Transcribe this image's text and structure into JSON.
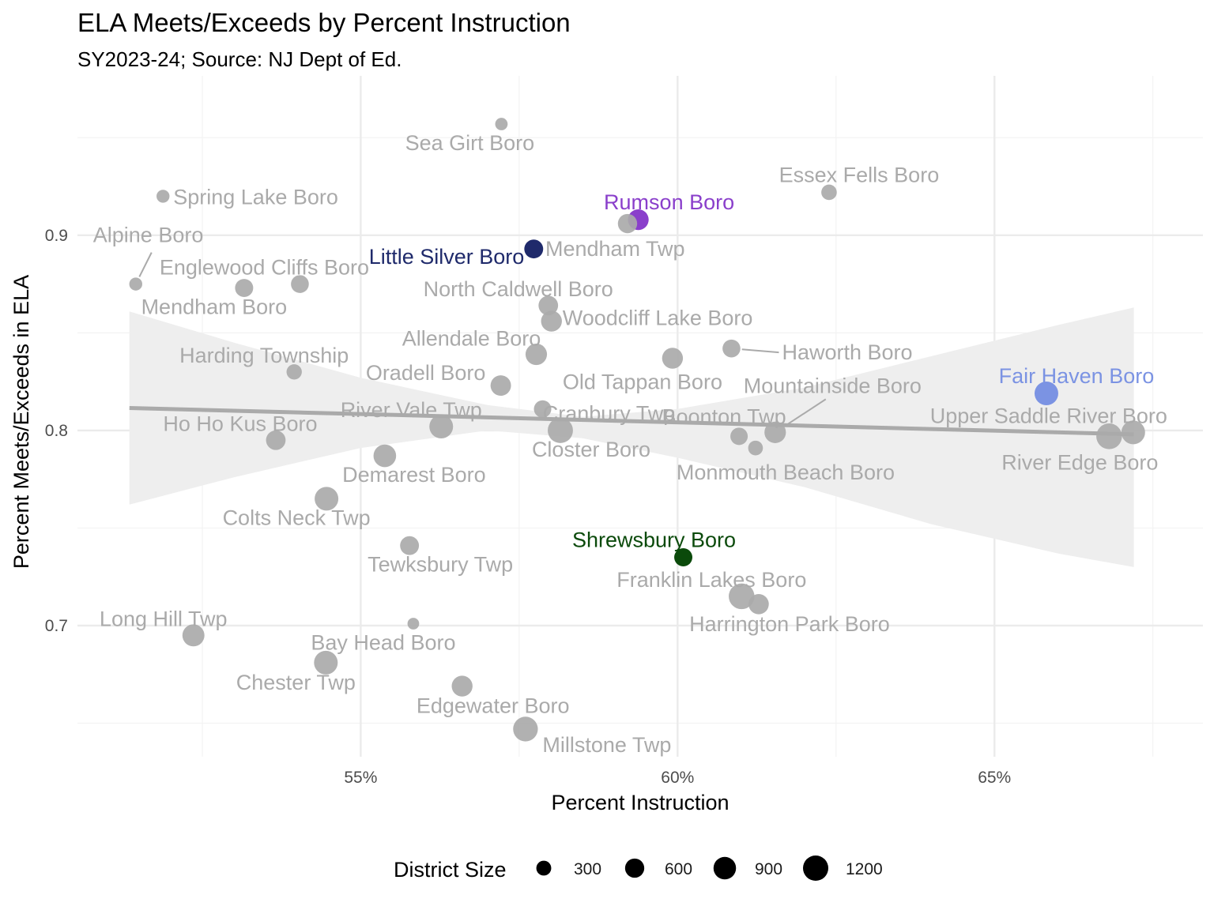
{
  "chart_data": {
    "type": "scatter",
    "title": "ELA Meets/Exceeds by Percent Instruction",
    "subtitle": "SY2023-24; Source: NJ Dept of Ed.",
    "xlabel": "Percent Instruction",
    "ylabel": "Percent Meets/Exceeds in ELA",
    "xlim": [
      0.5053,
      0.6829
    ],
    "ylim": [
      0.6328,
      0.9817
    ],
    "x_ticks": [
      {
        "value": 0.55,
        "label": "55%"
      },
      {
        "value": 0.6,
        "label": "60%"
      },
      {
        "value": 0.65,
        "label": "65%"
      }
    ],
    "y_ticks": [
      {
        "value": 0.7,
        "label": "0.7"
      },
      {
        "value": 0.8,
        "label": "0.8"
      },
      {
        "value": 0.9,
        "label": "0.9"
      }
    ],
    "x_minor_ticks": [
      0.525,
      0.575,
      0.625,
      0.675
    ],
    "y_minor_ticks": [
      0.65,
      0.75,
      0.85,
      0.95
    ],
    "trend_line": {
      "x": [
        0.5135,
        0.672
      ],
      "y": [
        0.8115,
        0.798
      ]
    },
    "confidence_band": {
      "x": [
        0.5135,
        0.53,
        0.55,
        0.57,
        0.585,
        0.6,
        0.62,
        0.64,
        0.66,
        0.672
      ],
      "upper": [
        0.861,
        0.845,
        0.827,
        0.813,
        0.807,
        0.811,
        0.822,
        0.838,
        0.854,
        0.863
      ],
      "lower": [
        0.762,
        0.776,
        0.791,
        0.8,
        0.796,
        0.786,
        0.771,
        0.752,
        0.737,
        0.73
      ]
    },
    "size_legend": {
      "title": "District Size",
      "values": [
        300,
        600,
        900,
        1200
      ],
      "labels": [
        "300",
        "600",
        "900",
        "1200"
      ]
    },
    "colors": {
      "default": "#aaaaaa",
      "trend": "#aaaaaa",
      "band": "#eeeeee",
      "Rumson Boro": "#8a3fcb",
      "Little Silver Boro": "#1f2a6b",
      "Fair Haven Boro": "#7b93e3",
      "Shrewsbury Boro": "#0b4a0b"
    },
    "points": [
      {
        "name": "Sea Girt Boro",
        "x": 0.5722,
        "y": 0.957,
        "size": 150,
        "label_anchor": "middle",
        "label_dx": -40,
        "label_dy": 33
      },
      {
        "name": "Spring Lake Boro",
        "x": 0.5188,
        "y": 0.92,
        "size": 170,
        "label_anchor": "start",
        "label_dx": 13,
        "label_dy": 10
      },
      {
        "name": "Alpine Boro",
        "x": 0.5145,
        "y": 0.875,
        "size": 170,
        "label_anchor": "start",
        "label_dx": -54,
        "label_dy": -53,
        "leader": true
      },
      {
        "name": "Essex Fells Boro",
        "x": 0.6239,
        "y": 0.922,
        "size": 290,
        "label_anchor": "middle",
        "label_dx": 38,
        "label_dy": -13
      },
      {
        "name": "Rumson Boro",
        "x": 0.5938,
        "y": 0.908,
        "size": 640,
        "label_anchor": "middle",
        "label_dx": 39,
        "label_dy": -13
      },
      {
        "name": "Mendham Twp",
        "x": 0.5921,
        "y": 0.906,
        "size": 530,
        "label_anchor": "start",
        "label_dx": -104,
        "label_dy": 41
      },
      {
        "name": "Little Silver Boro",
        "x": 0.5773,
        "y": 0.893,
        "size": 500,
        "label_anchor": "end",
        "label_dx": -12,
        "label_dy": 19
      },
      {
        "name": "Englewood Cliffs Boro",
        "x": 0.5404,
        "y": 0.875,
        "size": 430,
        "label_anchor": "middle",
        "label_dx": -45,
        "label_dy": -12
      },
      {
        "name": "Mendham Boro",
        "x": 0.5316,
        "y": 0.873,
        "size": 450,
        "label_anchor": "middle",
        "label_dx": -38,
        "label_dy": 33
      },
      {
        "name": "North Caldwell Boro",
        "x": 0.5796,
        "y": 0.864,
        "size": 550,
        "label_anchor": "middle",
        "label_dx": -38,
        "label_dy": -12
      },
      {
        "name": "Woodcliff Lake Boro",
        "x": 0.5801,
        "y": 0.856,
        "size": 650,
        "label_anchor": "start",
        "label_dx": 14,
        "label_dy": 5
      },
      {
        "name": "Allendale Boro",
        "x": 0.5777,
        "y": 0.839,
        "size": 700,
        "label_anchor": "middle",
        "label_dx": -82,
        "label_dy": -11
      },
      {
        "name": "Old Tappan Boro",
        "x": 0.5992,
        "y": 0.837,
        "size": 650,
        "label_anchor": "middle",
        "label_dx": -38,
        "label_dy": 39
      },
      {
        "name": "Haworth Boro",
        "x": 0.6085,
        "y": 0.842,
        "size": 430,
        "label_anchor": "start",
        "label_dx": 64,
        "label_dy": 14,
        "leader": true
      },
      {
        "name": "Harding Township",
        "x": 0.5395,
        "y": 0.83,
        "size": 280,
        "label_anchor": "middle",
        "label_dx": -38,
        "label_dy": -12
      },
      {
        "name": "Oradell Boro",
        "x": 0.5721,
        "y": 0.823,
        "size": 620,
        "label_anchor": "middle",
        "label_dx": -95,
        "label_dy": -7
      },
      {
        "name": "Mountainside Boro",
        "x": 0.6154,
        "y": 0.799,
        "size": 700,
        "label_anchor": "start",
        "label_dx": -40,
        "label_dy": -50,
        "leader": true
      },
      {
        "name": "Fair Haven Boro",
        "x": 0.6582,
        "y": 0.819,
        "size": 900,
        "label_anchor": "middle",
        "label_dx": 38,
        "label_dy": -13
      },
      {
        "name": "Cranbury Twp",
        "x": 0.5787,
        "y": 0.811,
        "size": 400,
        "label_anchor": "middle",
        "label_dx": 84,
        "label_dy": 15
      },
      {
        "name": "River Vale Twp",
        "x": 0.5627,
        "y": 0.802,
        "size": 900,
        "label_anchor": "middle",
        "label_dx": -38,
        "label_dy": -12
      },
      {
        "name": "Closter Boro",
        "x": 0.5815,
        "y": 0.8,
        "size": 1050,
        "label_anchor": "middle",
        "label_dx": 39,
        "label_dy": 33
      },
      {
        "name": "Boonton Twp",
        "x": 0.6097,
        "y": 0.797,
        "size": 400,
        "label_anchor": "middle",
        "label_dx": -19,
        "label_dy": -16
      },
      {
        "name": "Monmouth Beach Boro",
        "x": 0.6123,
        "y": 0.791,
        "size": 250,
        "label_anchor": "middle",
        "label_dx": 38,
        "label_dy": 40
      },
      {
        "name": "Upper Saddle River Boro",
        "x": 0.6719,
        "y": 0.799,
        "size": 900,
        "label_anchor": "middle",
        "label_dx": -107,
        "label_dy": -12
      },
      {
        "name": "River Edge Boro",
        "x": 0.6681,
        "y": 0.797,
        "size": 1100,
        "label_anchor": "middle",
        "label_dx": -37,
        "label_dy": 42
      },
      {
        "name": "Ho Ho Kus Boro",
        "x": 0.5366,
        "y": 0.795,
        "size": 550,
        "label_anchor": "middle",
        "label_dx": -45,
        "label_dy": -12
      },
      {
        "name": "Demarest Boro",
        "x": 0.5538,
        "y": 0.787,
        "size": 800,
        "label_anchor": "middle",
        "label_dx": 37,
        "label_dy": 33
      },
      {
        "name": "Colts Neck Twp",
        "x": 0.5446,
        "y": 0.765,
        "size": 900,
        "label_anchor": "middle",
        "label_dx": -38,
        "label_dy": 33
      },
      {
        "name": "Shrewsbury Boro",
        "x": 0.6009,
        "y": 0.735,
        "size": 450,
        "label_anchor": "middle",
        "label_dx": -37,
        "label_dy": -13
      },
      {
        "name": "Tewksbury Twp",
        "x": 0.5577,
        "y": 0.741,
        "size": 500,
        "label_anchor": "middle",
        "label_dx": 39,
        "label_dy": 33
      },
      {
        "name": "Franklin Lakes Boro",
        "x": 0.6101,
        "y": 0.715,
        "size": 1100,
        "label_anchor": "middle",
        "label_dx": -38,
        "label_dy": -12
      },
      {
        "name": "Harrington Park Boro",
        "x": 0.6128,
        "y": 0.711,
        "size": 600,
        "label_anchor": "middle",
        "label_dx": 39,
        "label_dy": 34
      },
      {
        "name": "Long Hill Twp",
        "x": 0.5236,
        "y": 0.695,
        "size": 750,
        "label_anchor": "middle",
        "label_dx": -38,
        "label_dy": -12
      },
      {
        "name": "Bay Head Boro",
        "x": 0.5583,
        "y": 0.701,
        "size": 120,
        "label_anchor": "middle",
        "label_dx": -38,
        "label_dy": 33
      },
      {
        "name": "Chester Twp",
        "x": 0.5445,
        "y": 0.681,
        "size": 900,
        "label_anchor": "middle",
        "label_dx": -38,
        "label_dy": 34
      },
      {
        "name": "Edgewater Boro",
        "x": 0.566,
        "y": 0.669,
        "size": 650,
        "label_anchor": "middle",
        "label_dx": 39,
        "label_dy": 34
      },
      {
        "name": "Millstone Twp",
        "x": 0.576,
        "y": 0.647,
        "size": 1000,
        "label_anchor": "middle",
        "label_dx": 103,
        "label_dy": 29
      }
    ]
  }
}
